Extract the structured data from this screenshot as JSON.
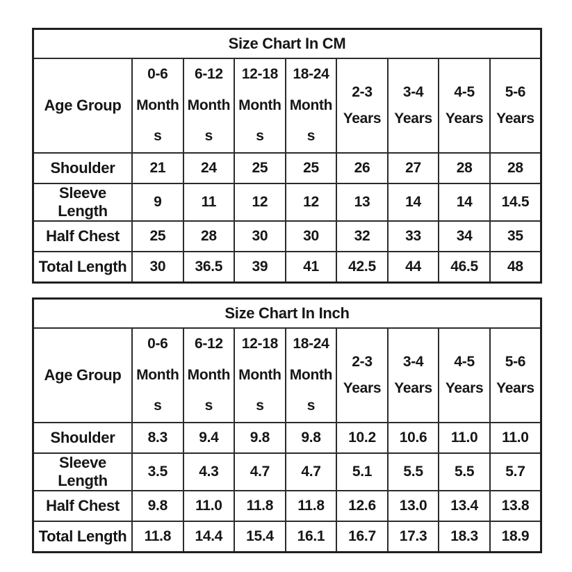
{
  "colors": {
    "border": "#2b2b2b",
    "text": "#161616",
    "background": "#ffffff"
  },
  "tables": [
    {
      "title": "Size Chart In CM",
      "corner_header": "Age Group",
      "col_headers": [
        "0-6\nMonth\ns",
        "6-12\nMonth\ns",
        "12-18\nMonth\ns",
        "18-24\nMonth\ns",
        "2-3\nYears",
        "3-4\nYears",
        "4-5\nYears",
        "5-6\nYears"
      ],
      "rows": [
        {
          "label": "Shoulder",
          "values": [
            "21",
            "24",
            "25",
            "25",
            "26",
            "27",
            "28",
            "28"
          ]
        },
        {
          "label": "Sleeve Length",
          "values": [
            "9",
            "11",
            "12",
            "12",
            "13",
            "14",
            "14",
            "14.5"
          ]
        },
        {
          "label": "Half Chest",
          "values": [
            "25",
            "28",
            "30",
            "30",
            "32",
            "33",
            "34",
            "35"
          ]
        },
        {
          "label": "Total Length",
          "values": [
            "30",
            "36.5",
            "39",
            "41",
            "42.5",
            "44",
            "46.5",
            "48"
          ]
        }
      ]
    },
    {
      "title": "Size Chart In Inch",
      "corner_header": "Age Group",
      "col_headers": [
        "0-6\nMonth\ns",
        "6-12\nMonth\ns",
        "12-18\nMonth\ns",
        "18-24\nMonth\ns",
        "2-3\nYears",
        "3-4\nYears",
        "4-5\nYears",
        "5-6\nYears"
      ],
      "rows": [
        {
          "label": "Shoulder",
          "values": [
            "8.3",
            "9.4",
            "9.8",
            "9.8",
            "10.2",
            "10.6",
            "11.0",
            "11.0"
          ]
        },
        {
          "label": "Sleeve Length",
          "values": [
            "3.5",
            "4.3",
            "4.7",
            "4.7",
            "5.1",
            "5.5",
            "5.5",
            "5.7"
          ]
        },
        {
          "label": "Half Chest",
          "values": [
            "9.8",
            "11.0",
            "11.8",
            "11.8",
            "12.6",
            "13.0",
            "13.4",
            "13.8"
          ]
        },
        {
          "label": "Total Length",
          "values": [
            "11.8",
            "14.4",
            "15.4",
            "16.1",
            "16.7",
            "17.3",
            "18.3",
            "18.9"
          ]
        }
      ]
    }
  ],
  "chart_data": [
    {
      "type": "table",
      "title": "Size Chart In CM",
      "categories": [
        "0-6 Months",
        "6-12 Months",
        "12-18 Months",
        "18-24 Months",
        "2-3 Years",
        "3-4 Years",
        "4-5 Years",
        "5-6 Years"
      ],
      "series": [
        {
          "name": "Shoulder",
          "values": [
            21,
            24,
            25,
            25,
            26,
            27,
            28,
            28
          ]
        },
        {
          "name": "Sleeve Length",
          "values": [
            9,
            11,
            12,
            12,
            13,
            14,
            14,
            14.5
          ]
        },
        {
          "name": "Half Chest",
          "values": [
            25,
            28,
            30,
            30,
            32,
            33,
            34,
            35
          ]
        },
        {
          "name": "Total Length",
          "values": [
            30,
            36.5,
            39,
            41,
            42.5,
            44,
            46.5,
            48
          ]
        }
      ]
    },
    {
      "type": "table",
      "title": "Size Chart In Inch",
      "categories": [
        "0-6 Months",
        "6-12 Months",
        "12-18 Months",
        "18-24 Months",
        "2-3 Years",
        "3-4 Years",
        "4-5 Years",
        "5-6 Years"
      ],
      "series": [
        {
          "name": "Shoulder",
          "values": [
            8.3,
            9.4,
            9.8,
            9.8,
            10.2,
            10.6,
            11.0,
            11.0
          ]
        },
        {
          "name": "Sleeve Length",
          "values": [
            3.5,
            4.3,
            4.7,
            4.7,
            5.1,
            5.5,
            5.5,
            5.7
          ]
        },
        {
          "name": "Half Chest",
          "values": [
            9.8,
            11.0,
            11.8,
            11.8,
            12.6,
            13.0,
            13.4,
            13.8
          ]
        },
        {
          "name": "Total Length",
          "values": [
            11.8,
            14.4,
            15.4,
            16.1,
            16.7,
            17.3,
            18.3,
            18.9
          ]
        }
      ]
    }
  ]
}
